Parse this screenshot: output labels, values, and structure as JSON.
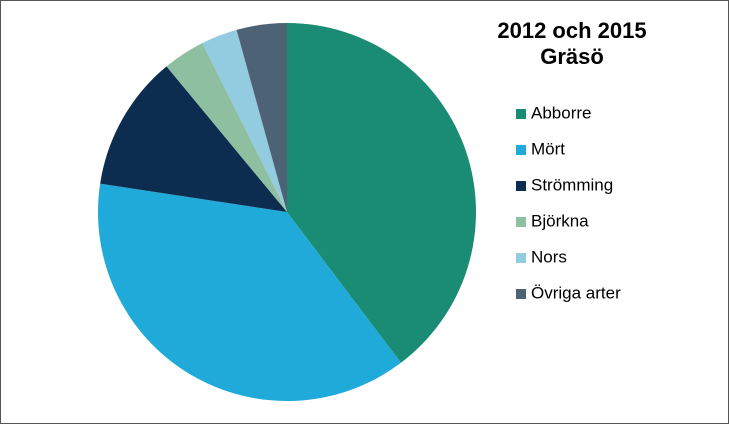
{
  "chart_data": {
    "type": "pie",
    "title": [
      "2012 och 2015",
      "Gräsö"
    ],
    "categories": [
      "Abborre",
      "Mört",
      "Strömming",
      "Björkna",
      "Nors",
      "Övriga arter"
    ],
    "values": [
      39.7,
      37.7,
      11.6,
      3.6,
      3.1,
      4.3
    ],
    "colors": [
      "#1a8c73",
      "#1faad9",
      "#0d2d50",
      "#8dbfa0",
      "#93cbe0",
      "#4d6275"
    ],
    "legend": "right"
  }
}
